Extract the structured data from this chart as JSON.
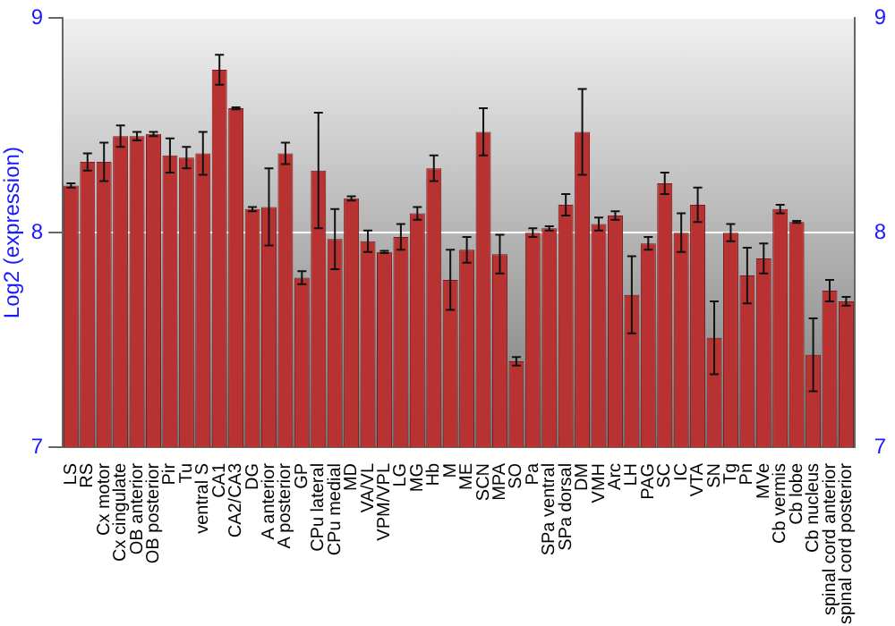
{
  "chart_data": {
    "type": "bar",
    "ylabel": "Log2 (expression)",
    "categories": [
      "LS",
      "RS",
      "Cx motor",
      "Cx cingulate",
      "OB anterior",
      "OB posterior",
      "Pir",
      "Tu",
      "ventral S",
      "CA1",
      "CA2/CA3",
      "DG",
      "A anterior",
      "A posterior",
      "GP",
      "CPu lateral",
      "CPu medial",
      "MD",
      "VA/VL",
      "VPM/VPL",
      "LG",
      "MG",
      "Hb",
      "M",
      "ME",
      "SCN",
      "MPA",
      "SO",
      "Pa",
      "SPa ventral",
      "SPa dorsal",
      "DM",
      "VMH",
      "Arc",
      "LH",
      "PAG",
      "SC",
      "IC",
      "VTA",
      "SN",
      "Tg",
      "Pn",
      "MVe",
      "Cb vermis",
      "Cb lobe",
      "Cb nucleus",
      "spinal cord anterior",
      "spinal cord posterior"
    ],
    "values": [
      8.22,
      8.33,
      8.33,
      8.45,
      8.45,
      8.46,
      8.36,
      8.35,
      8.37,
      8.76,
      8.58,
      8.11,
      8.12,
      8.37,
      7.79,
      8.29,
      7.97,
      8.16,
      7.96,
      7.91,
      7.98,
      8.09,
      8.3,
      7.78,
      7.92,
      8.47,
      7.9,
      7.4,
      8.0,
      8.02,
      8.13,
      8.47,
      8.04,
      8.08,
      7.71,
      7.95,
      8.23,
      8.0,
      8.13,
      7.51,
      8.0,
      7.8,
      7.88,
      8.11,
      8.05,
      7.43,
      7.73,
      7.68
    ],
    "errors": [
      0.01,
      0.04,
      0.09,
      0.05,
      0.02,
      0.01,
      0.08,
      0.05,
      0.1,
      0.07,
      0.005,
      0.01,
      0.18,
      0.05,
      0.03,
      0.27,
      0.14,
      0.01,
      0.05,
      0.005,
      0.06,
      0.03,
      0.06,
      0.14,
      0.06,
      0.11,
      0.09,
      0.02,
      0.02,
      0.01,
      0.05,
      0.2,
      0.03,
      0.02,
      0.18,
      0.03,
      0.05,
      0.09,
      0.08,
      0.17,
      0.04,
      0.13,
      0.07,
      0.02,
      0.005,
      0.17,
      0.05,
      0.02
    ],
    "color": "#b83232",
    "ylim": [
      7,
      9
    ],
    "yticks": [
      7,
      8,
      9
    ],
    "y2lim": [
      7,
      9
    ],
    "y2ticks": [
      7,
      8,
      9
    ],
    "grid": "y"
  }
}
